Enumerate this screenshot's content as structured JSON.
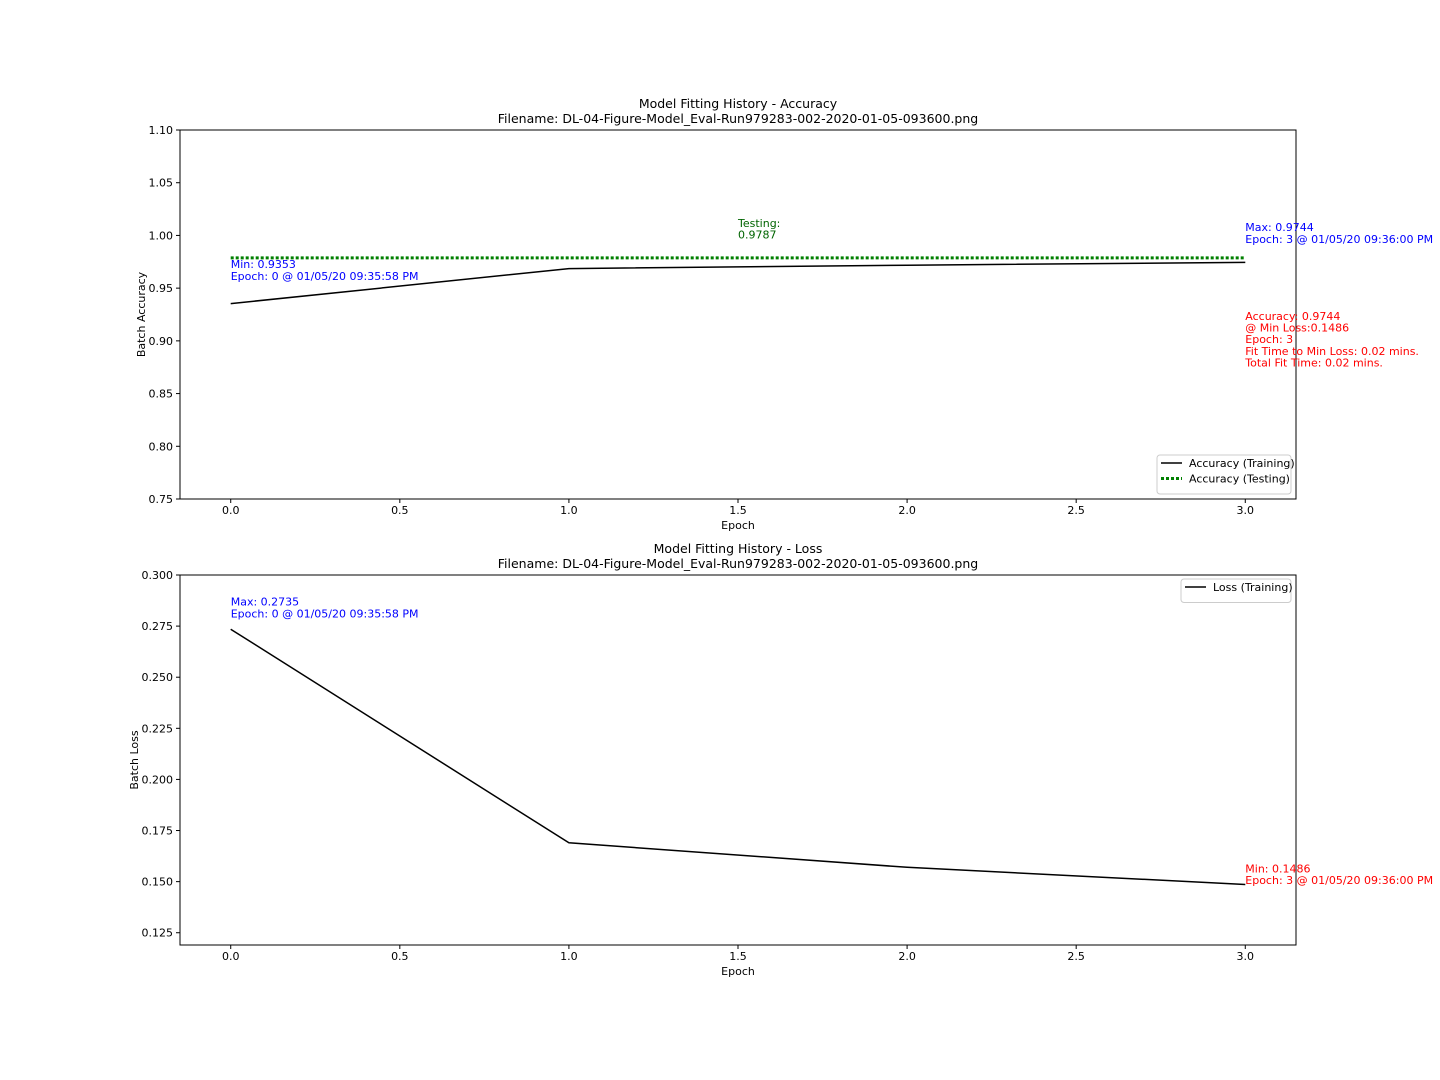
{
  "chart_data": [
    {
      "type": "line",
      "title": "Model Fitting History - Accuracy",
      "subtitle": "Filename: DL-04-Figure-Model_Eval-Run979283-002-2020-01-05-093600.png",
      "xlabel": "Epoch",
      "ylabel": "Batch Accuracy",
      "xlim": [
        -0.15,
        3.15
      ],
      "ylim": [
        0.75,
        1.1
      ],
      "xticks": [
        "0.0",
        "0.5",
        "1.0",
        "1.5",
        "2.0",
        "2.5",
        "3.0"
      ],
      "xtick_values": [
        0,
        0.5,
        1.0,
        1.5,
        2.0,
        2.5,
        3.0
      ],
      "yticks": [
        "0.75",
        "0.80",
        "0.85",
        "0.90",
        "0.95",
        "1.00",
        "1.05",
        "1.10"
      ],
      "ytick_values": [
        0.75,
        0.8,
        0.85,
        0.9,
        0.95,
        1.0,
        1.05,
        1.1
      ],
      "grid": false,
      "legend_position": "lower-right",
      "series": [
        {
          "name": "Accuracy (Training)",
          "color": "#000000",
          "style": "solid",
          "x": [
            0,
            1,
            2,
            3
          ],
          "y": [
            0.9353,
            0.9685,
            0.9718,
            0.9744
          ]
        },
        {
          "name": "Accuracy (Testing)",
          "color": "#008000",
          "style": "dotted",
          "x": [
            0,
            3
          ],
          "y": [
            0.9787,
            0.9787
          ]
        }
      ],
      "annotations": [
        {
          "lines": [
            "Testing:",
            "0.9787"
          ],
          "color": "#006400",
          "x": 1.5,
          "y": 1.008
        },
        {
          "lines": [
            "Max: 0.9744",
            "Epoch: 3 @ 01/05/20 09:36:00 PM"
          ],
          "color": "#0000ff",
          "x": 3.0,
          "y": 1.004
        },
        {
          "lines": [
            "Min: 0.9353",
            "Epoch: 0 @ 01/05/20 09:35:58 PM"
          ],
          "color": "#0000ff",
          "x": 0.0,
          "y": 0.969
        },
        {
          "lines": [
            "Accuracy: 0.9744",
            "@ Min Loss:0.1486",
            "Epoch: 3",
            "Fit Time to Min Loss: 0.02 mins.",
            "Total Fit Time: 0.02 mins."
          ],
          "color": "#ff0000",
          "x": 3.0,
          "y": 0.92
        }
      ]
    },
    {
      "type": "line",
      "title": "Model Fitting History - Loss",
      "subtitle": "Filename: DL-04-Figure-Model_Eval-Run979283-002-2020-01-05-093600.png",
      "xlabel": "Epoch",
      "ylabel": "Batch Loss",
      "xlim": [
        -0.15,
        3.15
      ],
      "ylim": [
        0.119,
        0.3
      ],
      "xticks": [
        "0.0",
        "0.5",
        "1.0",
        "1.5",
        "2.0",
        "2.5",
        "3.0"
      ],
      "xtick_values": [
        0,
        0.5,
        1.0,
        1.5,
        2.0,
        2.5,
        3.0
      ],
      "yticks": [
        "0.125",
        "0.150",
        "0.175",
        "0.200",
        "0.225",
        "0.250",
        "0.275",
        "0.300"
      ],
      "ytick_values": [
        0.125,
        0.15,
        0.175,
        0.2,
        0.225,
        0.25,
        0.275,
        0.3
      ],
      "grid": false,
      "legend_position": "upper-right",
      "series": [
        {
          "name": "Loss (Training)",
          "color": "#000000",
          "style": "solid",
          "x": [
            0,
            1,
            2,
            3
          ],
          "y": [
            0.2735,
            0.169,
            0.157,
            0.1486
          ]
        }
      ],
      "annotations": [
        {
          "lines": [
            "Max: 0.2735",
            "Epoch: 0 @ 01/05/20 09:35:58 PM"
          ],
          "color": "#0000ff",
          "x": 0.0,
          "y": 0.285
        },
        {
          "lines": [
            "Min: 0.1486",
            "Epoch: 3 @ 01/05/20 09:36:00 PM"
          ],
          "color": "#ff0000",
          "x": 3.0,
          "y": 0.1545
        }
      ]
    }
  ]
}
